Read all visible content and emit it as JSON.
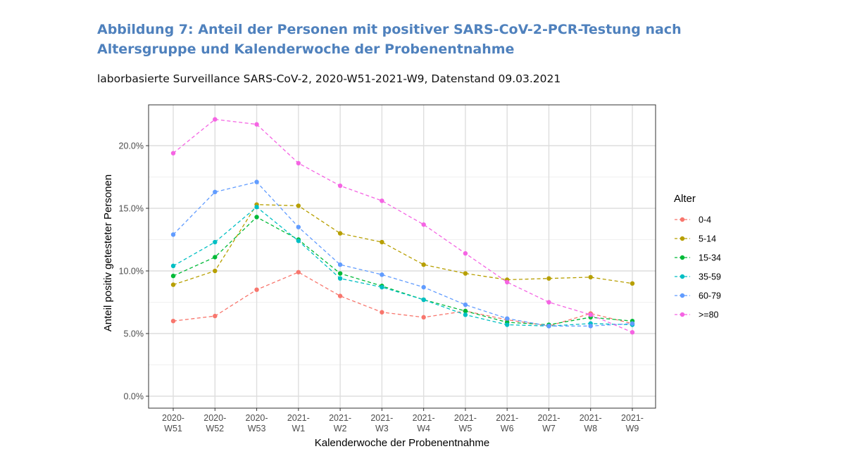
{
  "header": {
    "title": "Abbildung 7: Anteil der Personen mit positiver SARS-CoV-2-PCR-Testung nach Altersgruppe und Kalenderwoche der Probenentnahme",
    "subtitle": "laborbasierte Surveillance SARS-CoV-2, 2020-W51-2021-W9, Datenstand 09.03.2021"
  },
  "chart_data": {
    "type": "line",
    "line_style": "dashed",
    "markers": true,
    "x": [
      [
        "2020-",
        "W51"
      ],
      [
        "2020-",
        "W52"
      ],
      [
        "2020-",
        "W53"
      ],
      [
        "2021-",
        "W1"
      ],
      [
        "2021-",
        "W2"
      ],
      [
        "2021-",
        "W3"
      ],
      [
        "2021-",
        "W4"
      ],
      [
        "2021-",
        "W5"
      ],
      [
        "2021-",
        "W6"
      ],
      [
        "2021-",
        "W7"
      ],
      [
        "2021-",
        "W8"
      ],
      [
        "2021-",
        "W9"
      ]
    ],
    "xlabel": "Kalenderwoche der Probenentnahme",
    "ylabel": "Anteil positiv getesteter Personen",
    "ylim": [
      0,
      22.5
    ],
    "yticks": [
      0,
      5,
      10,
      15,
      20
    ],
    "ytick_labels": [
      "0.0%",
      "5.0%",
      "10.0%",
      "15.0%",
      "20.0%"
    ],
    "grid": true,
    "legend": {
      "title": "Alter",
      "position": "right"
    },
    "series": [
      {
        "name": "0-4",
        "color": "#f8766d",
        "values": [
          6.0,
          6.4,
          8.5,
          9.9,
          8.0,
          6.7,
          6.3,
          6.8,
          6.1,
          5.6,
          6.6,
          5.8
        ]
      },
      {
        "name": "5-14",
        "color": "#b79f00",
        "values": [
          8.9,
          10.0,
          15.3,
          15.2,
          13.0,
          12.3,
          10.5,
          9.8,
          9.3,
          9.4,
          9.5,
          9.0
        ]
      },
      {
        "name": "15-34",
        "color": "#00ba38",
        "values": [
          9.6,
          11.1,
          14.3,
          12.5,
          9.8,
          8.8,
          7.7,
          6.8,
          5.9,
          5.7,
          6.3,
          6.0
        ]
      },
      {
        "name": "35-59",
        "color": "#00bfc4",
        "values": [
          10.4,
          12.3,
          15.1,
          12.4,
          9.4,
          8.7,
          7.7,
          6.5,
          5.7,
          5.6,
          5.8,
          5.7
        ]
      },
      {
        "name": "60-79",
        "color": "#619cff",
        "values": [
          12.9,
          16.3,
          17.1,
          13.5,
          10.5,
          9.7,
          8.7,
          7.3,
          6.2,
          5.6,
          5.6,
          5.8
        ]
      },
      {
        "name": ">=80",
        "color": "#f564e3",
        "values": [
          19.4,
          22.1,
          21.7,
          18.6,
          16.8,
          15.6,
          13.7,
          11.4,
          9.1,
          7.5,
          6.5,
          5.1
        ]
      }
    ]
  }
}
